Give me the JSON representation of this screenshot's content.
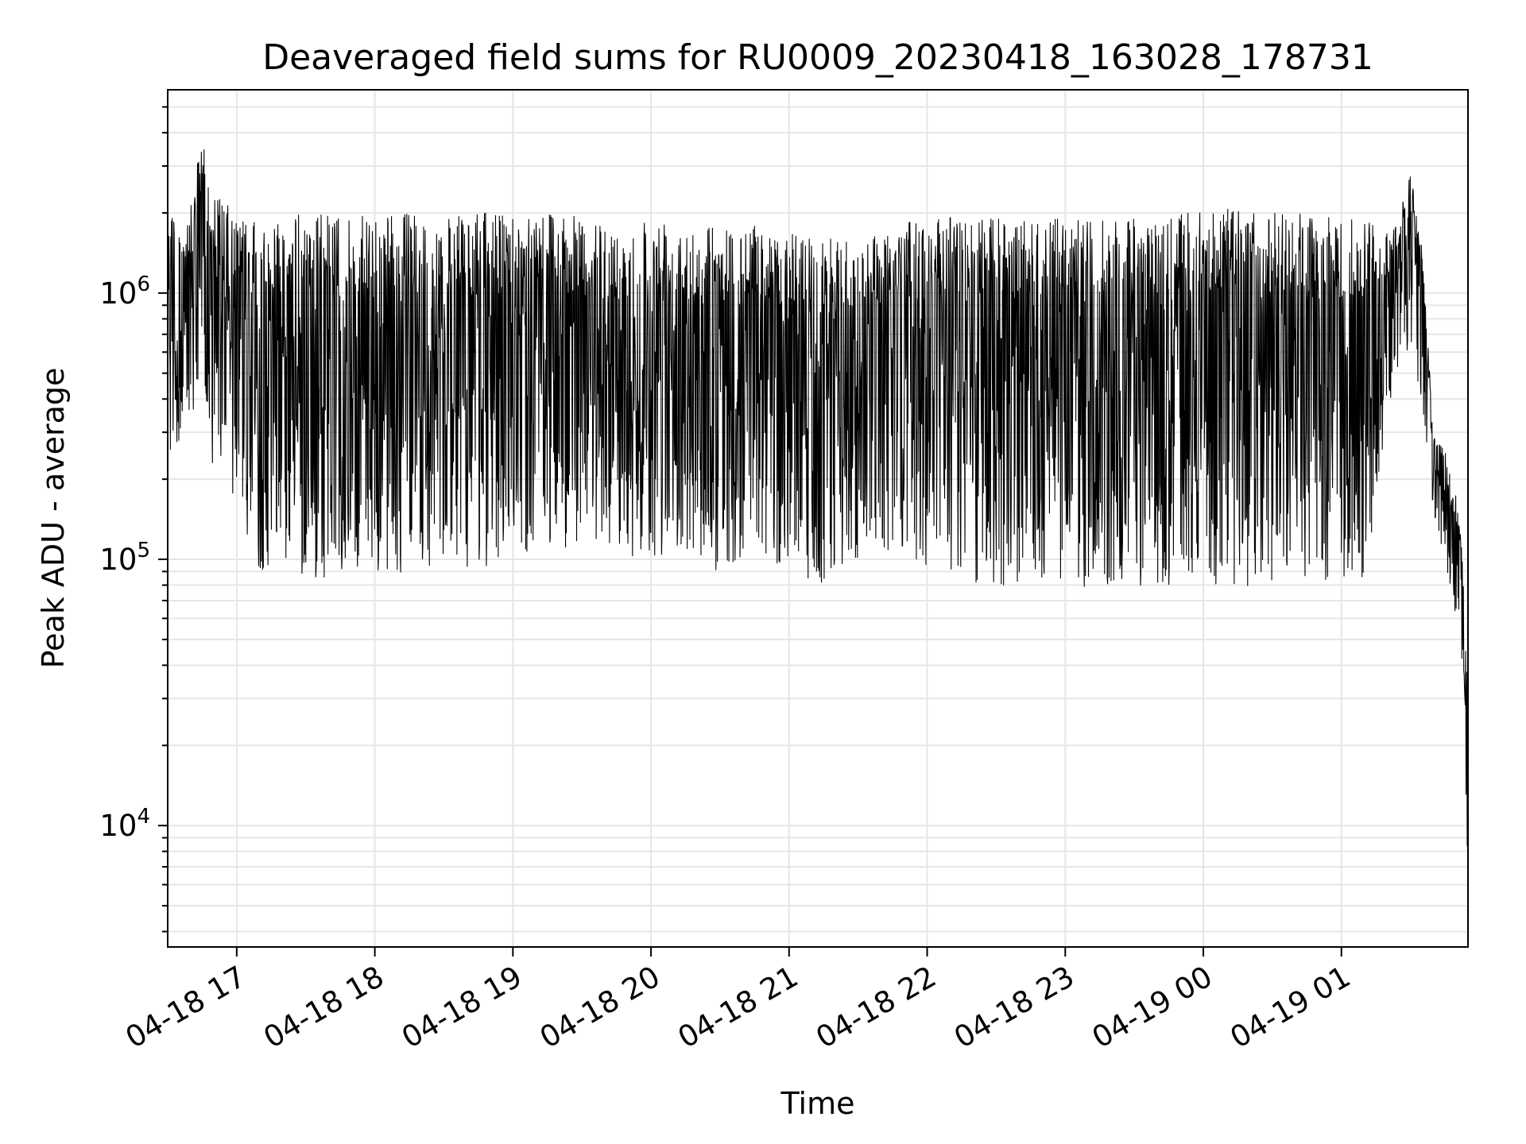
{
  "chart_data": {
    "type": "line",
    "title": "Deaveraged field sums for RU0009_20230418_163028_178731",
    "xlabel": "Time",
    "ylabel": "Peak ADU - average",
    "yscale": "log",
    "ylim": [
      3500,
      5800000
    ],
    "xlim": [
      "2023-04-18 16:30",
      "2023-04-19 01:55"
    ],
    "grid": true,
    "color": "#000000",
    "x_ticks": [
      {
        "value": "2023-04-18 17:00",
        "label": "04-18 17"
      },
      {
        "value": "2023-04-18 18:00",
        "label": "04-18 18"
      },
      {
        "value": "2023-04-18 19:00",
        "label": "04-18 19"
      },
      {
        "value": "2023-04-18 20:00",
        "label": "04-18 20"
      },
      {
        "value": "2023-04-18 21:00",
        "label": "04-18 21"
      },
      {
        "value": "2023-04-18 22:00",
        "label": "04-18 22"
      },
      {
        "value": "2023-04-18 23:00",
        "label": "04-18 23"
      },
      {
        "value": "2023-04-19 00:00",
        "label": "04-19 00"
      },
      {
        "value": "2023-04-19 01:00",
        "label": "04-19 01"
      }
    ],
    "y_ticks": [
      {
        "value": 10000,
        "base": "10",
        "exp": "4"
      },
      {
        "value": 100000,
        "base": "10",
        "exp": "5"
      },
      {
        "value": 1000000,
        "base": "10",
        "exp": "6"
      }
    ],
    "series": [
      {
        "x": [
          "2023-04-18 16:30",
          "2023-04-18 16:35",
          "2023-04-18 16:40",
          "2023-04-18 16:45",
          "2023-04-18 16:50",
          "2023-04-18 16:55",
          "2023-04-18 17:00",
          "2023-04-18 17:05",
          "2023-04-18 17:10",
          "2023-04-18 17:15",
          "2023-04-18 17:20",
          "2023-04-18 17:30",
          "2023-04-18 17:40",
          "2023-04-18 17:50",
          "2023-04-18 18:00",
          "2023-04-18 18:15",
          "2023-04-18 18:30",
          "2023-04-18 18:45",
          "2023-04-18 19:00",
          "2023-04-18 19:15",
          "2023-04-18 19:30",
          "2023-04-18 19:45",
          "2023-04-18 20:00",
          "2023-04-18 20:15",
          "2023-04-18 20:30",
          "2023-04-18 20:45",
          "2023-04-18 21:00",
          "2023-04-18 21:15",
          "2023-04-18 21:30",
          "2023-04-18 21:45",
          "2023-04-18 22:00",
          "2023-04-18 22:15",
          "2023-04-18 22:30",
          "2023-04-18 22:45",
          "2023-04-18 23:00",
          "2023-04-18 23:15",
          "2023-04-18 23:30",
          "2023-04-18 23:45",
          "2023-04-19 00:00",
          "2023-04-19 00:15",
          "2023-04-19 00:30",
          "2023-04-19 00:45",
          "2023-04-19 01:00",
          "2023-04-19 01:10",
          "2023-04-19 01:20",
          "2023-04-19 01:25",
          "2023-04-19 01:30",
          "2023-04-19 01:35",
          "2023-04-19 01:40",
          "2023-04-19 01:45",
          "2023-04-19 01:50",
          "2023-04-19 01:53",
          "2023-04-19 01:55"
        ],
        "high": [
          2800000,
          1700000,
          2100000,
          4000000,
          2400000,
          2200000,
          1900000,
          1900000,
          1800000,
          1900000,
          2000000,
          2000000,
          2000000,
          1900000,
          2000000,
          2000000,
          1900000,
          2000000,
          2000000,
          2100000,
          1900000,
          1700000,
          2000000,
          1900000,
          1800000,
          1800000,
          1700000,
          1600000,
          1600000,
          1800000,
          1900000,
          2000000,
          1900000,
          1900000,
          1900000,
          1900000,
          1900000,
          2000000,
          2000000,
          2200000,
          2000000,
          2000000,
          1900000,
          2000000,
          1700000,
          2000000,
          2900000,
          1500000,
          300000,
          260000,
          180000,
          100000,
          25000
        ],
        "low": [
          210000,
          280000,
          300000,
          450000,
          200000,
          250000,
          140000,
          120000,
          90000,
          95000,
          90000,
          85000,
          82000,
          90000,
          85000,
          88000,
          100000,
          90000,
          110000,
          100000,
          120000,
          110000,
          95000,
          100000,
          90000,
          110000,
          90000,
          78000,
          100000,
          110000,
          90000,
          80000,
          78000,
          82000,
          80000,
          78000,
          76000,
          78000,
          82000,
          78000,
          80000,
          85000,
          82000,
          85000,
          300000,
          500000,
          600000,
          400000,
          150000,
          100000,
          50000,
          40000,
          4500
        ]
      }
    ]
  }
}
